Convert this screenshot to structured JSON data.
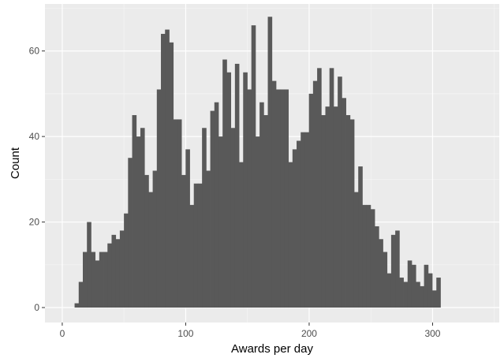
{
  "chart_data": {
    "type": "histogram",
    "xlabel": "Awards per day",
    "ylabel": "Count",
    "xlim": [
      -14,
      354
    ],
    "ylim": [
      -3.5,
      71
    ],
    "x_ticks": [
      0,
      100,
      200,
      300
    ],
    "y_ticks": [
      0,
      20,
      40,
      60
    ],
    "bin_start": 10,
    "bin_width": 3.33,
    "counts": [
      1,
      6,
      13,
      20,
      13,
      11,
      13,
      13,
      15,
      17,
      16,
      18,
      22,
      35,
      45,
      40,
      42,
      31,
      27,
      32,
      51,
      64,
      65,
      62,
      44,
      44,
      31,
      37,
      24,
      29,
      29,
      42,
      32,
      46,
      48,
      40,
      58,
      55,
      42,
      57,
      34,
      55,
      51,
      66,
      40,
      48,
      45,
      68,
      53,
      51,
      51,
      51,
      34,
      37,
      39,
      41,
      41,
      50,
      53,
      56,
      45,
      47,
      56,
      47,
      54,
      49,
      45,
      44,
      27,
      33,
      24,
      24,
      23,
      19,
      16,
      13,
      8,
      17,
      18,
      7,
      6,
      11,
      10,
      6,
      5,
      10,
      8,
      4,
      7
    ],
    "grid": true,
    "colors": {
      "panel": "#ebebeb",
      "grid_major": "#ffffff",
      "bar": "#595959",
      "tick_text": "#4d4d4d",
      "title_text": "#000000"
    }
  }
}
